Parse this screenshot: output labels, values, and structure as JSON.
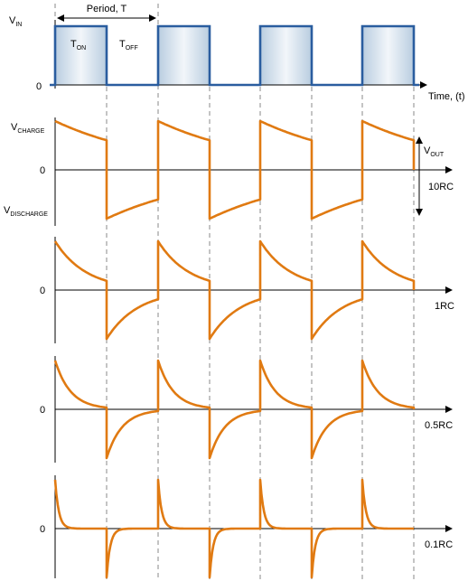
{
  "input": {
    "v_label": "V",
    "v_sub": "IN",
    "zero": "0",
    "period_label": "Period, T",
    "t_on": "T",
    "t_on_sub": "ON",
    "t_off": "T",
    "t_off_sub": "OFF",
    "time_label": "Time, (t)"
  },
  "output": {
    "v_charge": "V",
    "v_charge_sub": "CHARGE",
    "v_discharge": "V",
    "v_discharge_sub": "DISCHARGE",
    "v_out": "V",
    "v_out_sub": "OUT"
  },
  "panels": [
    {
      "label": "10RC",
      "zero": "0",
      "tau_over_half_period": 2.0
    },
    {
      "label": "1RC",
      "zero": "0",
      "tau_over_half_period": 0.6
    },
    {
      "label": "0.5RC",
      "zero": "0",
      "tau_over_half_period": 0.3
    },
    {
      "label": "0.1RC",
      "zero": "0",
      "tau_over_half_period": 0.07
    }
  ],
  "colors": {
    "square_wave": "#2a5d9f",
    "rc_wave": "#e07a12",
    "pulse_fill_edge": "#b9cde0",
    "pulse_fill_center": "#f2f6fa"
  }
}
